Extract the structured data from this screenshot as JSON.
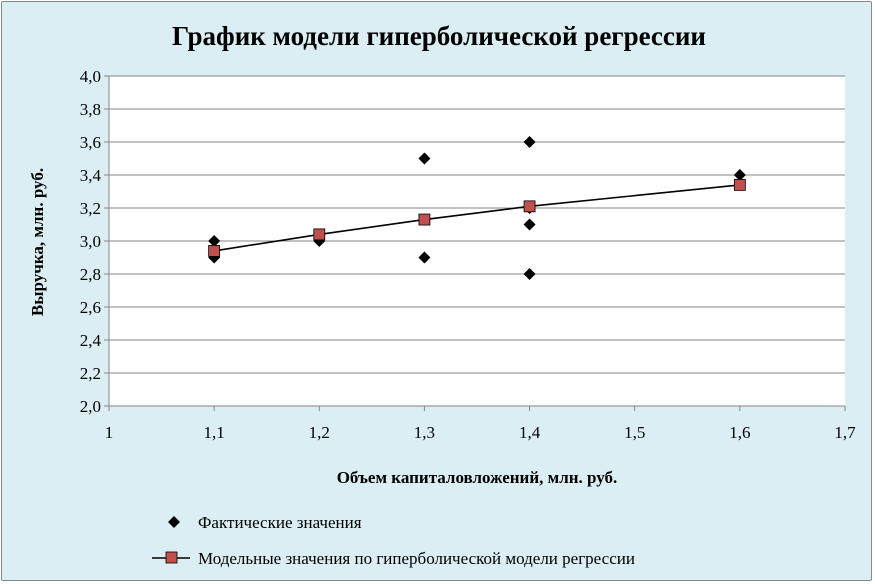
{
  "chart_data": {
    "type": "scatter",
    "title": "График модели гиперболической регрессии",
    "xlabel": "Объем капиталовложений, млн. руб.",
    "ylabel": "Выручка, млн. руб.",
    "xlim": [
      1,
      1.7
    ],
    "ylim": [
      2.0,
      4.0
    ],
    "x_ticks": [
      "1",
      "1,1",
      "1,2",
      "1,3",
      "1,4",
      "1,5",
      "1,6",
      "1,7"
    ],
    "y_ticks": [
      "2,0",
      "2,2",
      "2,4",
      "2,6",
      "2,8",
      "3,0",
      "3,2",
      "3,4",
      "3,6",
      "3,8",
      "4,0"
    ],
    "grid": "horizontal",
    "legend_position": "bottom",
    "series": [
      {
        "name": "Фактические значения",
        "marker": "diamond",
        "color": "#000000",
        "line": false,
        "x": [
          1.1,
          1.1,
          1.2,
          1.3,
          1.3,
          1.3,
          1.4,
          1.4,
          1.4,
          1.4,
          1.6
        ],
        "y": [
          3.0,
          2.9,
          3.0,
          3.5,
          2.9,
          3.13,
          3.6,
          3.2,
          3.1,
          2.8,
          3.4
        ]
      },
      {
        "name": "Модельные значения по гиперболической модели регрессии",
        "marker": "square",
        "color": "#c0504d",
        "line": true,
        "x": [
          1.1,
          1.2,
          1.3,
          1.4,
          1.6
        ],
        "y": [
          2.94,
          3.04,
          3.13,
          3.21,
          3.34
        ]
      }
    ]
  }
}
